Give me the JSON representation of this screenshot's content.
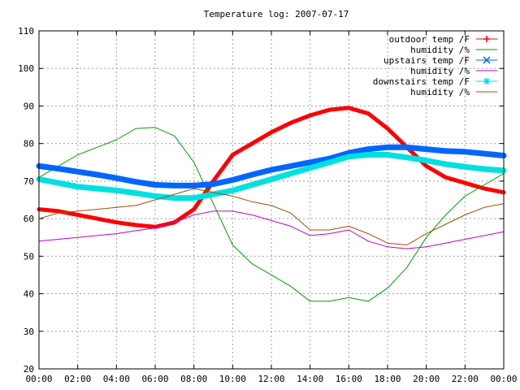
{
  "chart_data": {
    "type": "line",
    "title": "Temperature log: 2007-07-17",
    "xlabel": "",
    "ylabel": "",
    "xlim": [
      0,
      24
    ],
    "ylim": [
      20,
      110
    ],
    "x_ticks": [
      "00:00",
      "02:00",
      "04:00",
      "06:00",
      "08:00",
      "10:00",
      "12:00",
      "14:00",
      "16:00",
      "18:00",
      "20:00",
      "22:00",
      "00:00"
    ],
    "y_ticks": [
      "20",
      "30",
      "40",
      "50",
      "60",
      "70",
      "80",
      "90",
      "100",
      "110"
    ],
    "grid": true,
    "legend_position": "top-right",
    "x": [
      0,
      1,
      2,
      3,
      4,
      5,
      6,
      7,
      8,
      9,
      10,
      11,
      12,
      13,
      14,
      15,
      16,
      17,
      18,
      19,
      20,
      21,
      22,
      23,
      24
    ],
    "series": [
      {
        "name": "outdoor temp /F",
        "color": "#ff0000",
        "marker": "plus",
        "width": 5,
        "values": [
          62.5,
          62,
          61,
          60,
          59,
          58.3,
          57.8,
          59,
          62.5,
          70,
          77,
          80,
          83,
          85.5,
          87.5,
          89,
          89.5,
          88,
          84,
          79,
          74,
          71,
          69.5,
          68,
          67
        ]
      },
      {
        "name": "humidity /%",
        "color": "#00a000",
        "marker": "none",
        "width": 1,
        "values": [
          71,
          74,
          77,
          79,
          81,
          84,
          84.3,
          82,
          75,
          64,
          53,
          48,
          45,
          42,
          38,
          38,
          39,
          38,
          41.5,
          47,
          55,
          61,
          66,
          69,
          72
        ]
      },
      {
        "name": "upstairs temp /F",
        "color": "#0066ff",
        "marker": "x",
        "width": 7,
        "values": [
          74,
          73.3,
          72.5,
          71.7,
          70.8,
          69.8,
          69,
          68.8,
          68.8,
          69.2,
          70.3,
          71.7,
          73,
          74,
          75,
          76,
          77.5,
          78.5,
          79,
          79,
          78.5,
          78,
          77.8,
          77.3,
          76.8
        ]
      },
      {
        "name": "humidity /%",
        "color": "#bb00dd",
        "marker": "none",
        "width": 1,
        "values": [
          54,
          54.5,
          55,
          55.5,
          56,
          56.8,
          57.5,
          59,
          61,
          62,
          62,
          61,
          59.5,
          58,
          55.5,
          56,
          57,
          54,
          52.5,
          52,
          52.5,
          53.5,
          54.5,
          55.5,
          56.5
        ]
      },
      {
        "name": "downstairs temp /F",
        "color": "#00e0e0",
        "marker": "star",
        "width": 7,
        "values": [
          70.5,
          69.5,
          68.5,
          68,
          67.5,
          66.8,
          66,
          65.5,
          65.5,
          66.5,
          67.5,
          69,
          70.5,
          72,
          73.5,
          75,
          76.5,
          77,
          77,
          76.3,
          75.5,
          74.5,
          73.8,
          73.2,
          72.8
        ]
      },
      {
        "name": "humidity /%",
        "color": "#a05000",
        "marker": "none",
        "width": 1,
        "values": [
          60,
          61.5,
          62,
          62.5,
          63,
          63.5,
          65,
          66.5,
          68,
          67,
          66,
          64.5,
          63.5,
          61.5,
          57,
          57,
          58,
          56,
          53.5,
          53,
          56,
          58.5,
          61,
          63,
          64
        ]
      }
    ]
  }
}
